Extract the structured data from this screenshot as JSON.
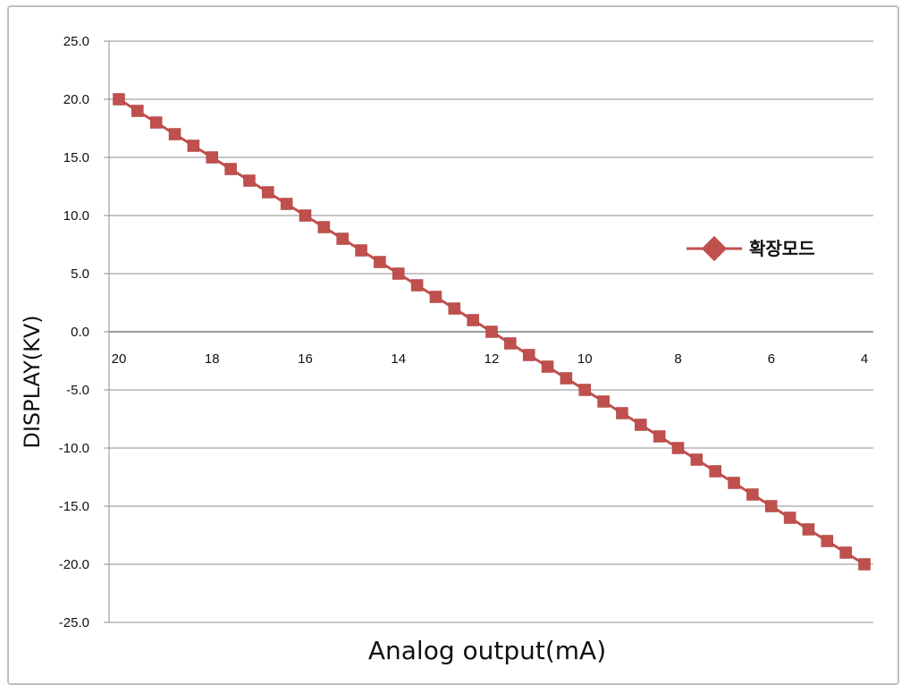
{
  "chart_data": {
    "type": "line",
    "xlabel": "Analog output(mA)",
    "ylabel": "DISPLAY(KV)",
    "ylim": [
      -25,
      25
    ],
    "yticks": [
      "25.0",
      "20.0",
      "15.0",
      "10.0",
      "5.0",
      "0.0",
      "-5.0",
      "-10.0",
      "-15.0",
      "-20.0",
      "-25.0"
    ],
    "xlim": [
      20,
      4
    ],
    "xticks": [
      "20",
      "18",
      "16",
      "14",
      "12",
      "10",
      "8",
      "6",
      "4"
    ],
    "grid": "horizontal",
    "legend_position": "right",
    "series": [
      {
        "name": "확장모드",
        "color": "#c0504d",
        "marker": "square",
        "x": [
          20,
          19.6,
          19.2,
          18.8,
          18.4,
          18,
          17.6,
          17.2,
          16.8,
          16.4,
          16,
          15.6,
          15.2,
          14.8,
          14.4,
          14,
          13.6,
          13.2,
          12.8,
          12.4,
          12,
          11.6,
          11.2,
          10.8,
          10.4,
          10,
          9.6,
          9.2,
          8.8,
          8.4,
          8,
          7.6,
          7.2,
          6.8,
          6.4,
          6,
          5.6,
          5.2,
          4.8,
          4.4,
          4
        ],
        "y": [
          20,
          19,
          18,
          17,
          16,
          15,
          14,
          13,
          12,
          11,
          10,
          9,
          8,
          7,
          6,
          5,
          4,
          3,
          2,
          1,
          0,
          -1,
          -2,
          -3,
          -4,
          -5,
          -6,
          -7,
          -8,
          -9,
          -10,
          -11,
          -12,
          -13,
          -14,
          -15,
          -16,
          -17,
          -18,
          -19,
          -20
        ]
      }
    ]
  }
}
